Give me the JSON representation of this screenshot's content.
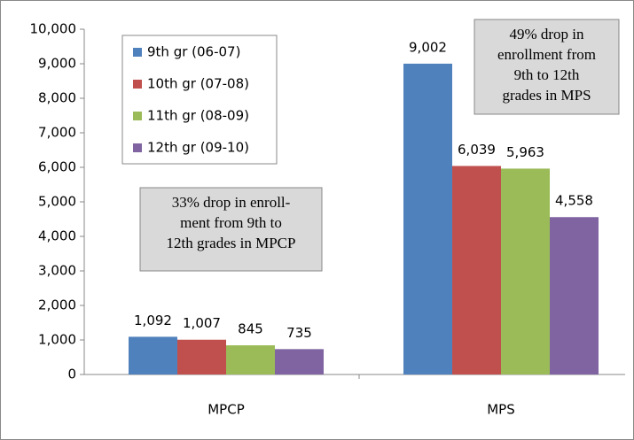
{
  "chart_data": {
    "type": "bar",
    "categories": [
      "MPCP",
      "MPS"
    ],
    "series": [
      {
        "name": "9th gr (06-07)",
        "color": "#4f81bd",
        "values": [
          1092,
          9002
        ],
        "value_labels": [
          "1,092",
          "9,002"
        ]
      },
      {
        "name": "10th gr (07-08)",
        "color": "#c0504d",
        "values": [
          1007,
          6039
        ],
        "value_labels": [
          "1,007",
          "6,039"
        ]
      },
      {
        "name": "11th gr (08-09)",
        "color": "#9bbb59",
        "values": [
          845,
          5963
        ],
        "value_labels": [
          "845",
          "5,963"
        ]
      },
      {
        "name": "12th gr (09-10)",
        "color": "#8064a2",
        "values": [
          735,
          4558
        ],
        "value_labels": [
          "735",
          "4,558"
        ]
      }
    ],
    "ylim": [
      0,
      10000
    ],
    "yticks": [
      0,
      {
        "value": 1000,
        "label": "1,000"
      },
      {
        "value": 2000,
        "label": "2,000"
      },
      {
        "value": 3000,
        "label": "3,000"
      },
      {
        "value": 4000,
        "label": "4,000"
      },
      {
        "value": 5000,
        "label": "5,000"
      },
      {
        "value": 6000,
        "label": "6,000"
      },
      {
        "value": 7000,
        "label": "7,000"
      },
      {
        "value": 8000,
        "label": "8,000"
      },
      {
        "value": 9000,
        "label": "9,000"
      },
      {
        "value": 10000,
        "label": "10,000"
      }
    ],
    "grid": false,
    "legend": "upper-left",
    "annotations": [
      [
        "33% drop in enroll-",
        "ment from 9th to",
        "12th grades in MPCP"
      ],
      [
        "49% drop in",
        "enrollment from",
        "9th to 12th",
        "grades in MPS"
      ]
    ]
  }
}
